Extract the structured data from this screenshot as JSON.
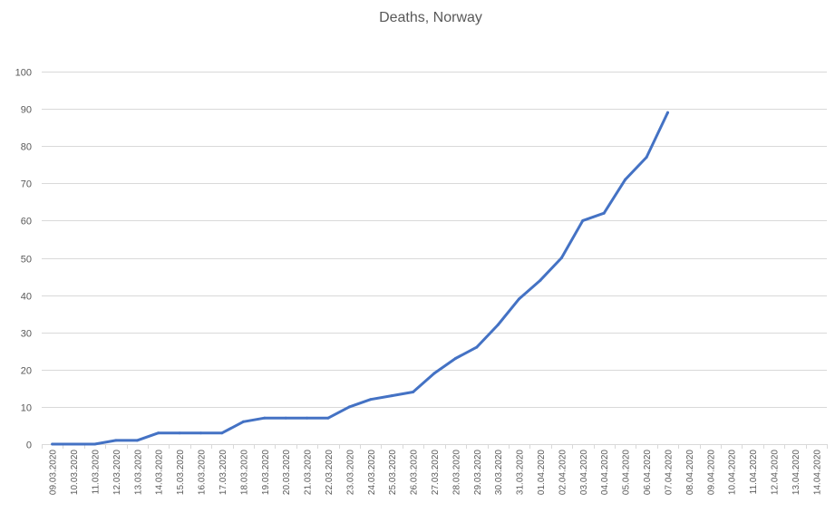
{
  "chart_data": {
    "type": "line",
    "title": "Deaths, Norway",
    "xlabel": "",
    "ylabel": "",
    "ylim": [
      0,
      100
    ],
    "yticks": [
      "0",
      "10",
      "20",
      "30",
      "40",
      "50",
      "60",
      "70",
      "80",
      "90",
      "100"
    ],
    "grid": true,
    "legend": "none",
    "categories": [
      "09.03.2020",
      "10.03.2020",
      "11.03.2020",
      "12.03.2020",
      "13.03.2020",
      "14.03.2020",
      "15.03.2020",
      "16.03.2020",
      "17.03.2020",
      "18.03.2020",
      "19.03.2020",
      "20.03.2020",
      "21.03.2020",
      "22.03.2020",
      "23.03.2020",
      "24.03.2020",
      "25.03.2020",
      "26.03.2020",
      "27.03.2020",
      "28.03.2020",
      "29.03.2020",
      "30.03.2020",
      "31.03.2020",
      "01.04.2020",
      "02.04.2020",
      "03.04.2020",
      "04.04.2020",
      "05.04.2020",
      "06.04.2020",
      "07.04.2020",
      "08.04.2020",
      "09.04.2020",
      "10.04.2020",
      "11.04.2020",
      "12.04.2020",
      "13.04.2020",
      "14.04.2020"
    ],
    "series": [
      {
        "color": "#4472c4",
        "values": [
          0,
          0,
          0,
          1,
          1,
          3,
          3,
          3,
          3,
          6,
          7,
          7,
          7,
          7,
          10,
          12,
          13,
          14,
          19,
          23,
          26,
          32,
          39,
          44,
          50,
          60,
          62,
          71,
          77,
          89,
          null,
          null,
          null,
          null,
          null,
          null,
          null
        ]
      }
    ]
  }
}
